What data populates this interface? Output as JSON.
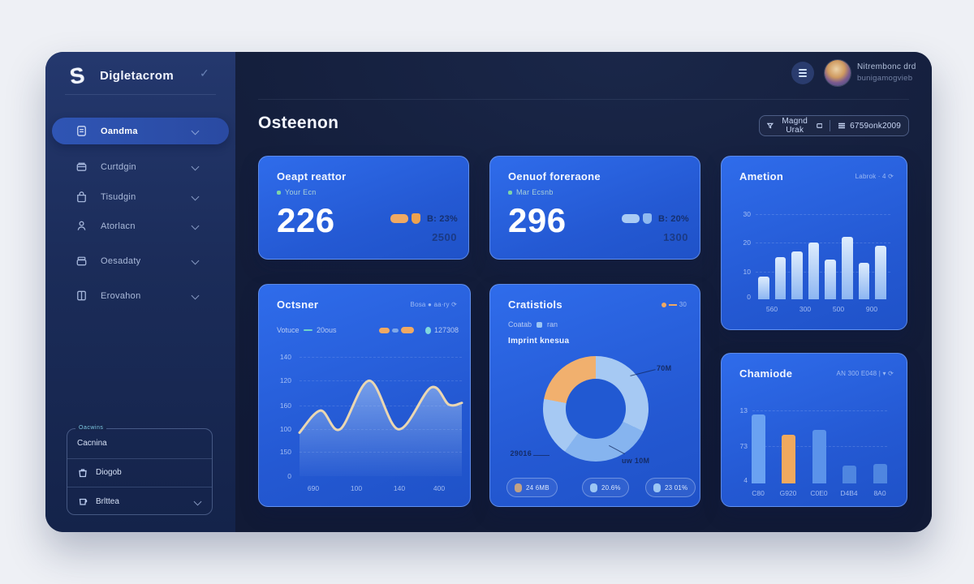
{
  "colors": {
    "card_blue": "#2766e4",
    "accent_orange": "#f0a963",
    "accent_lightblue": "#a6c9f3",
    "accent_teal": "#6fd3c8",
    "accent_green": "#7fd4a8"
  },
  "sidebar": {
    "logo_text": "Digletacrom",
    "check_icon": "✓",
    "items": [
      {
        "label": "Oandma",
        "icon": "doc",
        "active": true
      },
      {
        "label": "Curtdgin",
        "icon": "box",
        "active": false
      },
      {
        "label": "Tisudgin",
        "icon": "bag",
        "active": false
      },
      {
        "label": "Atorlacn",
        "icon": "person",
        "active": false
      },
      {
        "label": "Oesadaty",
        "icon": "archive",
        "active": false
      },
      {
        "label": "Erovahon",
        "icon": "book",
        "active": false
      }
    ],
    "panel": {
      "tag": "Oacwins",
      "rows": [
        {
          "label": "Cacnina",
          "icon": "",
          "chevron": false
        },
        {
          "label": "Diogob",
          "icon": "trash",
          "chevron": false
        },
        {
          "label": "Brlttea",
          "icon": "cup",
          "chevron": true
        }
      ]
    }
  },
  "topbar": {
    "user_name": "Nitrembonc drd",
    "user_sub": "bunigamogvieb"
  },
  "header": {
    "title": "Osteenon",
    "filter_button": "Magnd Urak",
    "list_button": "6759onk2009"
  },
  "kpi_cards": [
    {
      "title": "Oeapt reattor",
      "subtitle": "Your Ecn",
      "value": "226",
      "side_label": "B: 23%",
      "side_value": "2500",
      "pill_color": "#f0a963"
    },
    {
      "title": "Oenuof foreraone",
      "subtitle": "Mar Ecsnb",
      "value": "296",
      "side_label": "B: 20%",
      "side_value": "1300",
      "pill_color": "#a9cbf4"
    }
  ],
  "chart_cards": {
    "bars1": {
      "title": "Ametion",
      "meta": "Labrok · 4 ⟳"
    },
    "line": {
      "title": "Octsner",
      "meta": "Bosa ● aa·ry ⟳",
      "legend_name": "Votuce",
      "legend_value": "20ous",
      "legend_right": "127308"
    },
    "donut": {
      "title": "Cratistiols",
      "meta": "30",
      "sub_label": "Coatab",
      "sub_value": "ran",
      "metric_label": "Imprint knesua"
    },
    "bars2": {
      "title": "Chamiode",
      "meta": "AN 300 E048 | ▾ ⟳"
    }
  },
  "chart_data": [
    {
      "id": "ametion",
      "type": "bar",
      "title": "Ametion",
      "values": [
        8,
        15,
        17,
        20,
        14,
        22,
        13,
        19
      ],
      "x_tick_labels": [
        "560",
        "300",
        "500",
        "900"
      ],
      "y_tick_labels": [
        "30",
        "20",
        "10",
        "0"
      ],
      "ylim": [
        0,
        30
      ],
      "grid": true,
      "bar_color": "#9fc2f5"
    },
    {
      "id": "octsner",
      "type": "area",
      "title": "Octsner",
      "series": [
        {
          "name": "Votuce",
          "x": [
            0,
            0.13,
            0.25,
            0.43,
            0.61,
            0.81,
            0.92,
            1
          ],
          "values": [
            51,
            77,
            55,
            112,
            55,
            104,
            84,
            86
          ]
        }
      ],
      "x_tick_labels": [
        "690",
        "100",
        "140",
        "400"
      ],
      "y_tick_labels": [
        "140",
        "120",
        "160",
        "100",
        "150",
        "0"
      ],
      "ylim": [
        0,
        140
      ],
      "grid": true,
      "line_color": "#ead7b2",
      "area_color": "#b7d3f7"
    },
    {
      "id": "cratistiols",
      "type": "pie",
      "slices": [
        {
          "label": "24 6MB",
          "value": 22,
          "color": "#f1b06e",
          "dot_color": "#c2a184"
        },
        {
          "label": "20.6%",
          "value": 28,
          "color": "#86b4ef",
          "dot_color": "#9cc6f4"
        },
        {
          "label": "23 01%",
          "value": 50,
          "color": "#a6c9f3",
          "dot_color": "#9cc6f4"
        }
      ],
      "annotations": [
        "29016",
        "70M",
        "uw 10M"
      ]
    },
    {
      "id": "chamiode",
      "type": "bar",
      "title": "Chamiode",
      "values": [
        9.4,
        6.7,
        7.3,
        2.5,
        2.7
      ],
      "colors": [
        "#6aa2f2",
        "#f0a95e",
        "#5b93ea",
        "#4f86e0",
        "#4f86e0"
      ],
      "x_tick_labels": [
        "C80",
        "G920",
        "C0E0",
        "D4B4",
        "8A0"
      ],
      "y_tick_labels": [
        "13",
        "73",
        "4"
      ],
      "ylim": [
        0,
        10
      ],
      "grid": true
    }
  ]
}
